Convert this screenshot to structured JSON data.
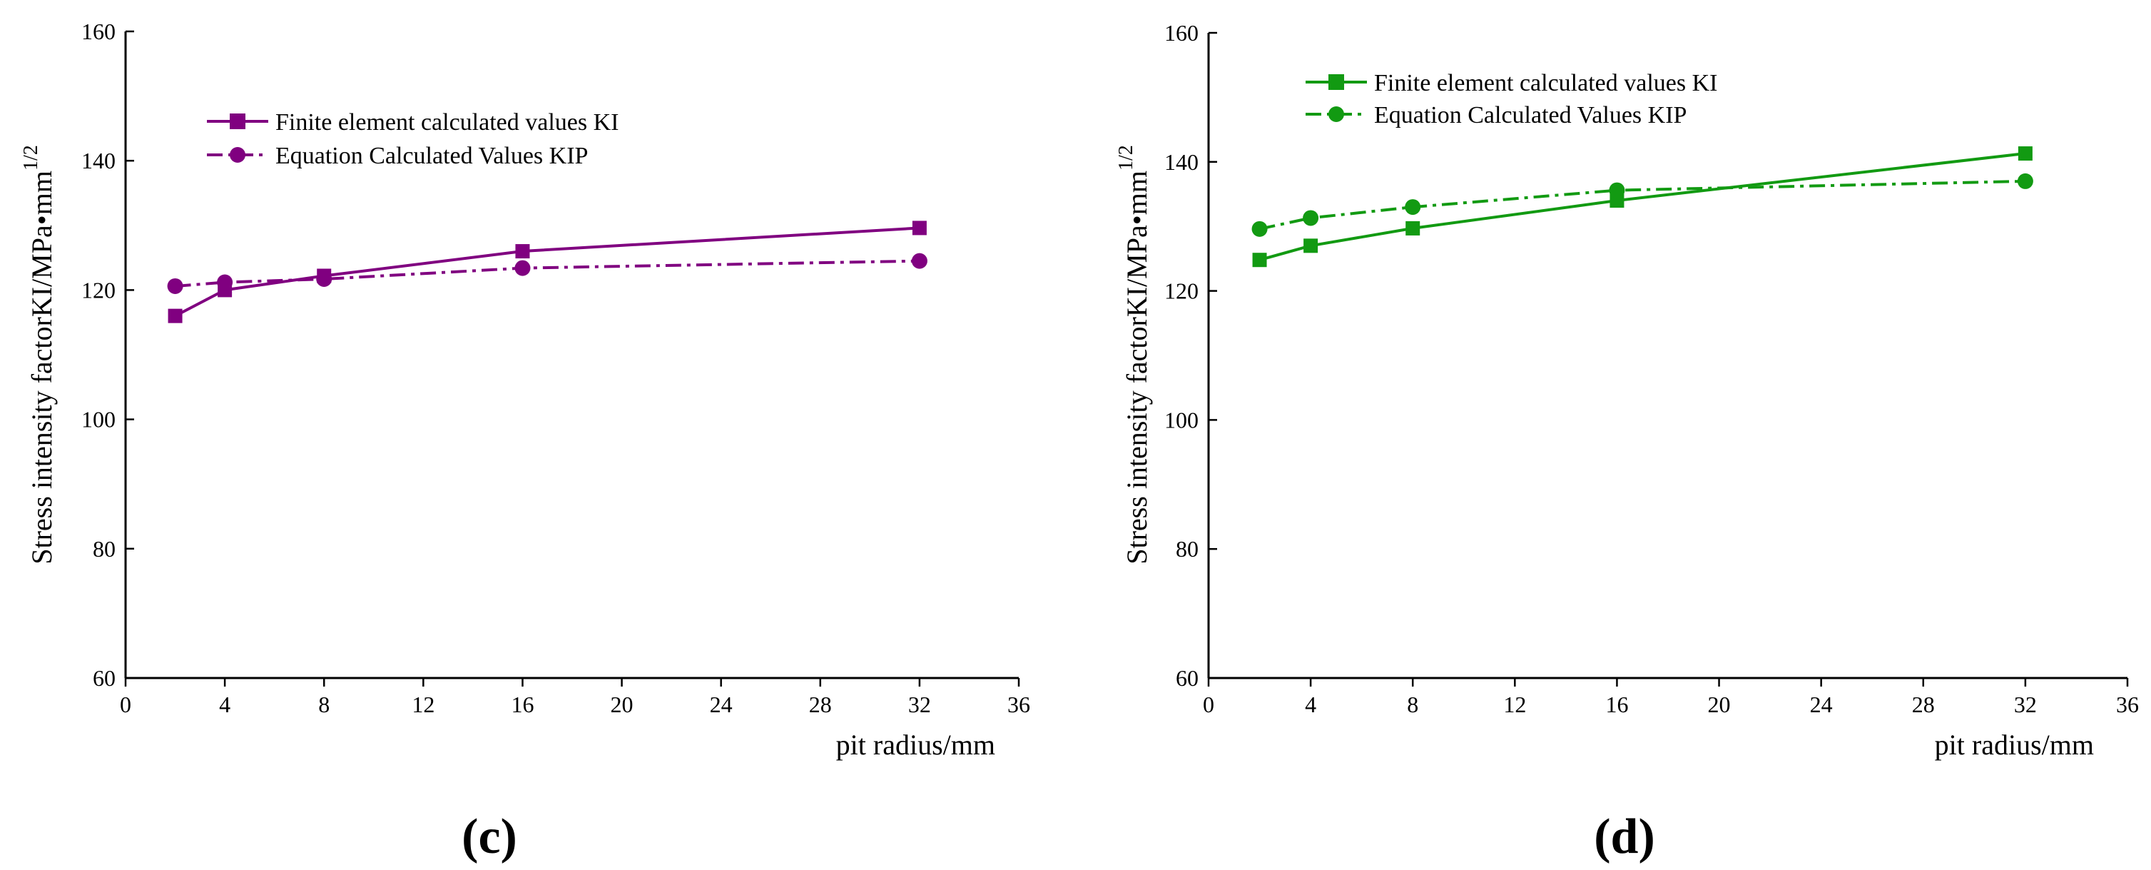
{
  "chart_data": [
    {
      "type": "line",
      "panel_label": "(c)",
      "color": "#800080",
      "xlabel": "pit radius/mm",
      "ylabel": "Stress intensity factorKI/MPa•mm",
      "ylabel_superscript": "1/2",
      "xlim": [
        0,
        36
      ],
      "ylim": [
        60,
        160
      ],
      "xticks": [
        0,
        4,
        8,
        12,
        16,
        20,
        24,
        28,
        32,
        36
      ],
      "yticks": [
        60,
        80,
        100,
        120,
        140,
        160
      ],
      "legend_position": "upper-left",
      "series": [
        {
          "name": "Finite element calculated values KI",
          "marker": "square",
          "line": "solid",
          "x": [
            2,
            4,
            8,
            16,
            32
          ],
          "y": [
            116,
            120,
            122.2,
            126,
            129.6
          ]
        },
        {
          "name": "Equation Calculated Values KIP",
          "marker": "circle",
          "line": "dashdot",
          "x": [
            2,
            4,
            8,
            16,
            32
          ],
          "y": [
            120.6,
            121.2,
            121.7,
            123.4,
            124.5
          ]
        }
      ]
    },
    {
      "type": "line",
      "panel_label": "(d)",
      "color": "#129A12",
      "xlabel": "pit radius/mm",
      "ylabel": "Stress intensity factorKI/MPa•mm",
      "ylabel_superscript": "1/2",
      "xlim": [
        0,
        36
      ],
      "ylim": [
        60,
        160
      ],
      "xticks": [
        0,
        4,
        8,
        12,
        16,
        20,
        24,
        28,
        32,
        36
      ],
      "yticks": [
        60,
        80,
        100,
        120,
        140,
        160
      ],
      "legend_position": "upper-left",
      "series": [
        {
          "name": "Finite element calculated values KI",
          "marker": "square",
          "line": "solid",
          "x": [
            2,
            4,
            8,
            16,
            32
          ],
          "y": [
            124.8,
            127,
            129.7,
            134,
            141.3
          ]
        },
        {
          "name": "Equation Calculated Values KIP",
          "marker": "circle",
          "line": "dashdot",
          "x": [
            2,
            4,
            8,
            16,
            32
          ],
          "y": [
            129.6,
            131.3,
            133,
            135.6,
            137
          ]
        }
      ]
    }
  ]
}
